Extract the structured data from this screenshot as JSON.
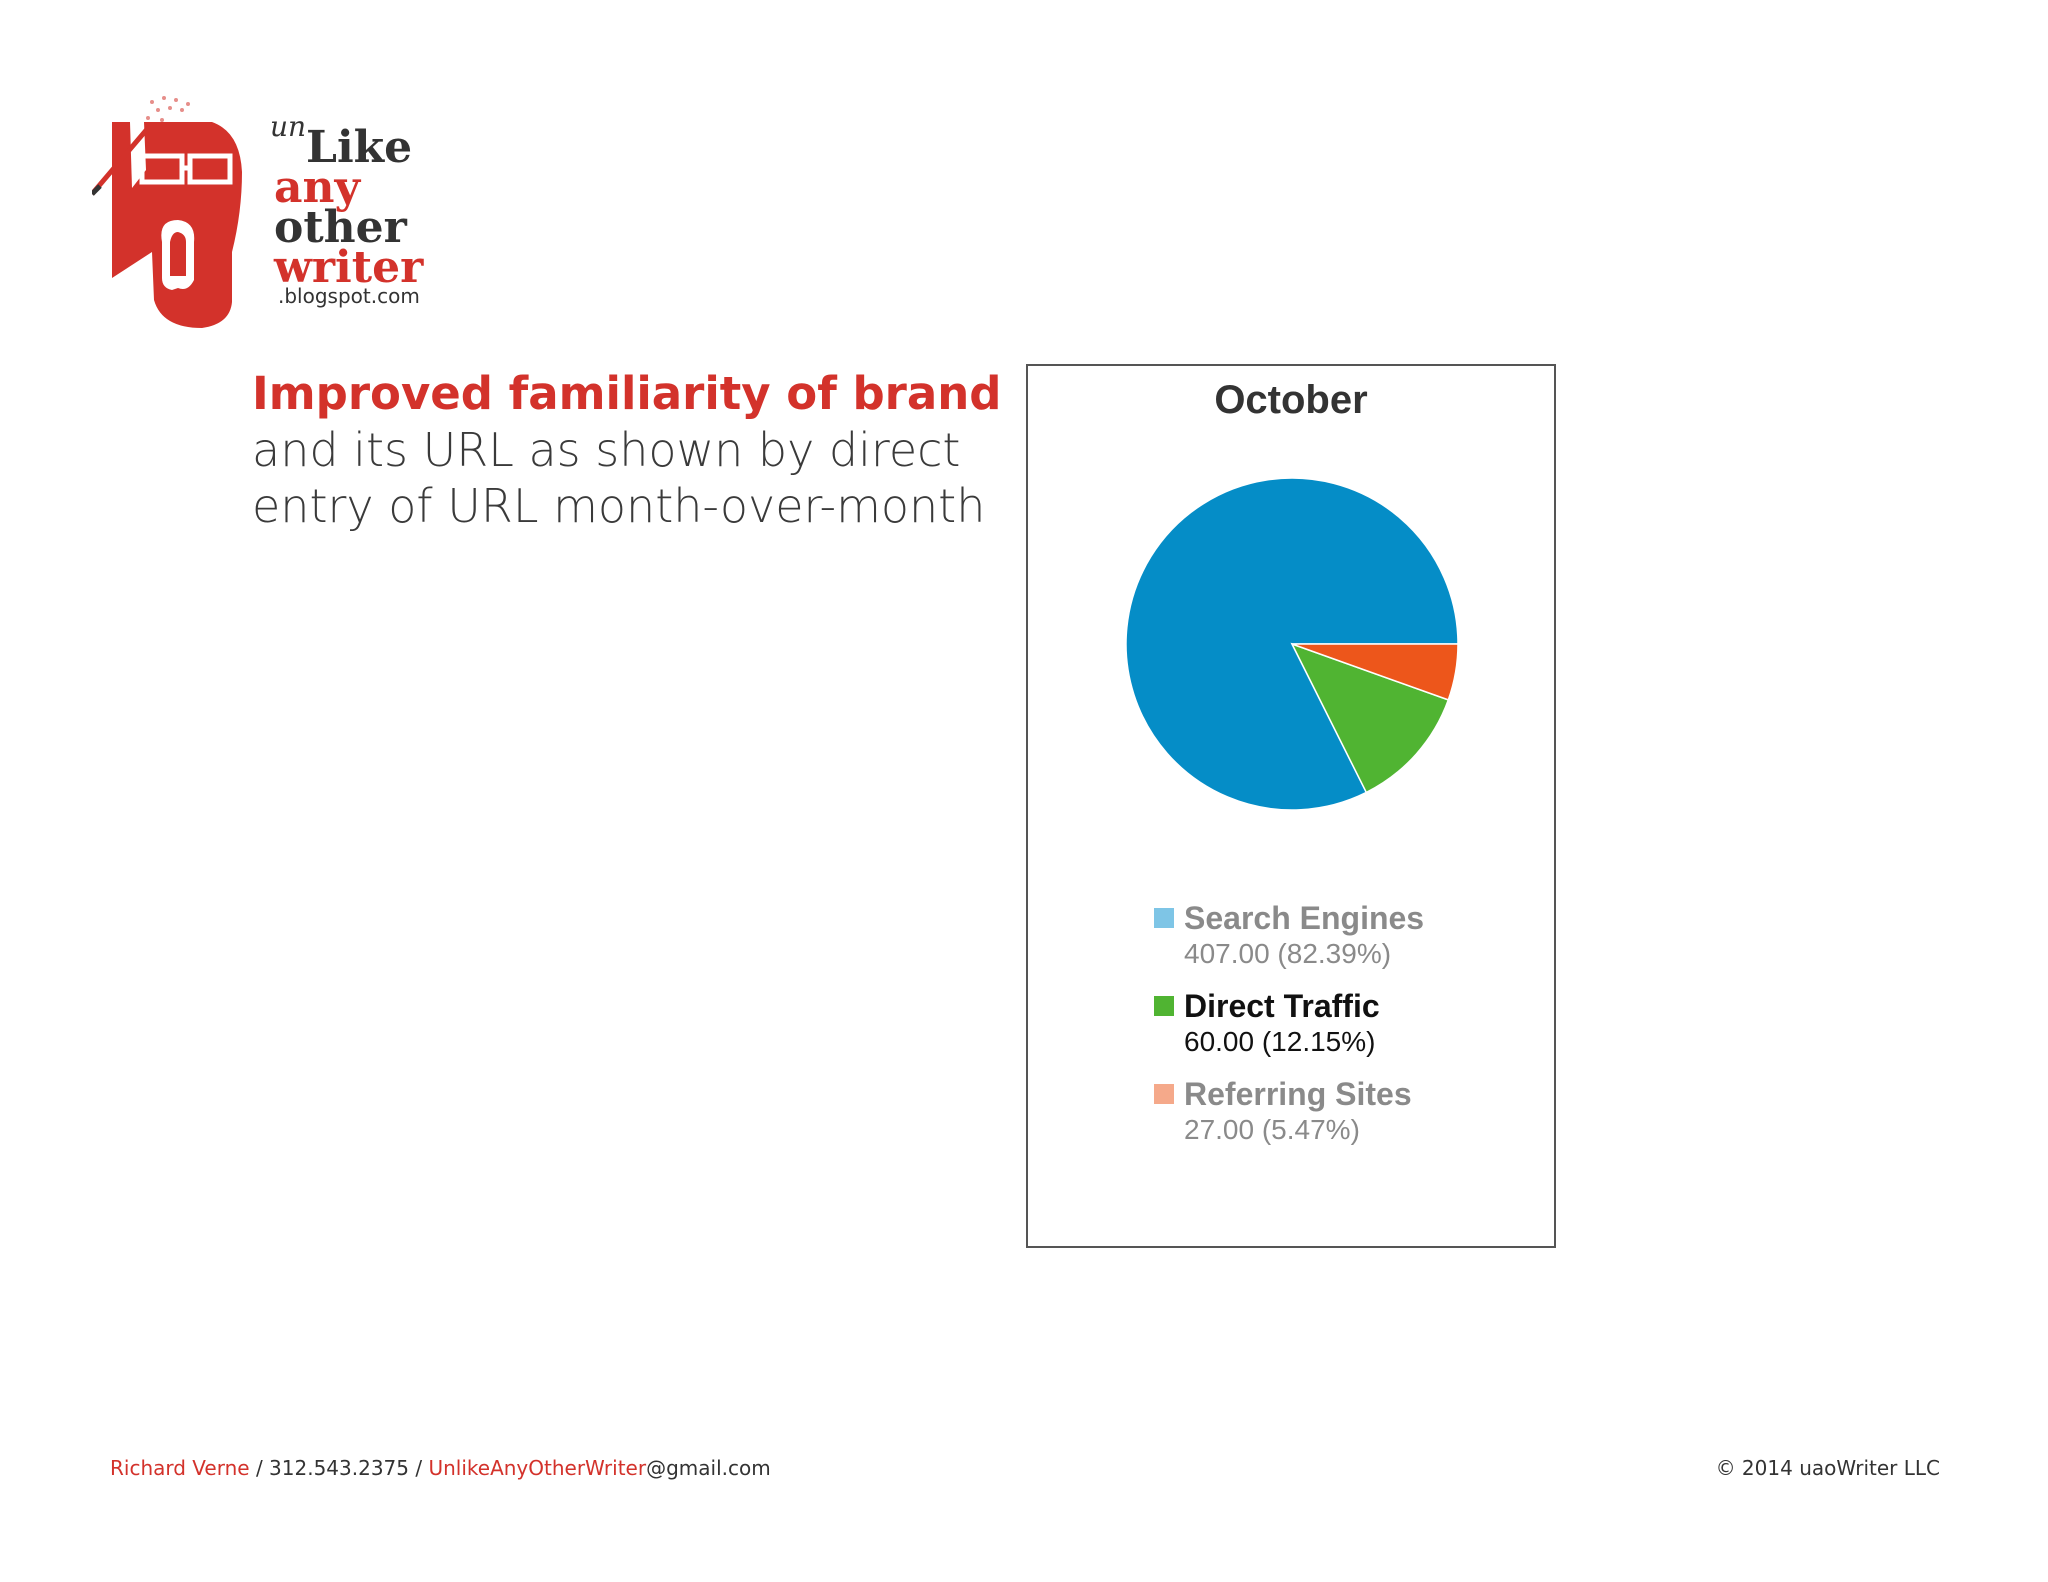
{
  "logo": {
    "line_un": "un",
    "line_like": "Like",
    "line_any": "any",
    "line_other": "other",
    "line_writer": "writer",
    "domain": ".blogspot.com"
  },
  "headline": {
    "highlight": "Improved familiarity of brand",
    "line2": "and its URL as shown by direct",
    "line3": "entry of URL month-over-month"
  },
  "chart_data": {
    "type": "pie",
    "title": "October",
    "slices": [
      {
        "name": "Search Engines",
        "value": 407.0,
        "percent": 82.39,
        "label": "407.00 (82.39%)",
        "color": "#058dc7",
        "swatch": "#7ec5e6",
        "text_color": "#8a8a8a"
      },
      {
        "name": "Direct Traffic",
        "value": 60.0,
        "percent": 12.15,
        "label": "60.00 (12.15%)",
        "color": "#50b432",
        "swatch": "#50b432",
        "text_color": "#111111"
      },
      {
        "name": "Referring Sites",
        "value": 27.0,
        "percent": 5.47,
        "label": "27.00 (5.47%)",
        "color": "#ed561b",
        "swatch": "#f5a98a",
        "text_color": "#8a8a8a"
      }
    ],
    "legend": "bottom"
  },
  "footer": {
    "name": "Richard Verne",
    "sep1": " / ",
    "phone": "312.543.2375",
    "sep2": " / ",
    "email_user": "UnlikeAnyOtherWriter",
    "email_domain": "@gmail.com",
    "copyright": "© 2014 uaoWriter LLC"
  },
  "colors": {
    "brand_red": "#d3322b",
    "text_dark": "#3a3a3a"
  }
}
